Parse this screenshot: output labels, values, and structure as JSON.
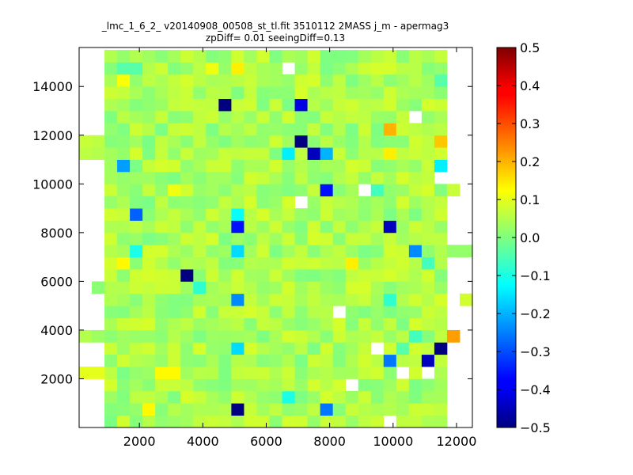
{
  "chart_data": {
    "type": "heatmap",
    "title_lines": [
      "_lmc_1_6_2_ v20140908_00508_st_tl.fit 3510112 2MASS j_m - apermag3",
      "zpDiff= 0.01 seeingDiff=0.13"
    ],
    "xlabel": "",
    "ylabel": "",
    "xlim": [
      100,
      12500
    ],
    "ylim": [
      0,
      15600
    ],
    "x_ticks": [
      2000,
      4000,
      6000,
      8000,
      10000,
      12000
    ],
    "x_tick_labels": [
      "2000",
      "4000",
      "6000",
      "8000",
      "10000",
      "12000"
    ],
    "y_ticks": [
      2000,
      4000,
      6000,
      8000,
      10000,
      12000,
      14000
    ],
    "y_tick_labels": [
      "2000",
      "4000",
      "6000",
      "8000",
      "10000",
      "12000",
      "14000"
    ],
    "colormap": "jet",
    "colorbar": {
      "vmin": -0.5,
      "vmax": 0.5,
      "ticks": [
        -0.5,
        -0.4,
        -0.3,
        -0.2,
        -0.1,
        0.0,
        0.1,
        0.2,
        0.3,
        0.4,
        0.5
      ],
      "tick_labels": [
        "−0.5",
        "−0.4",
        "−0.3",
        "−0.2",
        "−0.1",
        "0.0",
        "0.1",
        "0.2",
        "0.3",
        "0.4",
        "0.5"
      ]
    },
    "grid": false,
    "cell_size": [
      400,
      500
    ],
    "base_columns": {
      "x_start": 900,
      "count": 27,
      "y_start": 0,
      "rows": 31,
      "typical_value": 0.04
    },
    "cells": [
      {
        "x": 100,
        "y": 11000,
        "v": 0.06
      },
      {
        "x": 500,
        "y": 11000,
        "v": 0.05
      },
      {
        "x": 100,
        "y": 11500,
        "v": 0.07
      },
      {
        "x": 500,
        "y": 11500,
        "v": 0.06
      },
      {
        "x": 500,
        "y": 5500,
        "v": 0.01
      },
      {
        "x": 100,
        "y": 3500,
        "v": 0.05
      },
      {
        "x": 500,
        "y": 3500,
        "v": 0.03
      },
      {
        "x": 100,
        "y": 2000,
        "v": 0.1
      },
      {
        "x": 500,
        "y": 2000,
        "v": 0.1
      },
      {
        "x": 11700,
        "y": 9500,
        "v": 0.07
      },
      {
        "x": 11700,
        "y": 7000,
        "v": 0.02
      },
      {
        "x": 12100,
        "y": 7000,
        "v": 0.02
      },
      {
        "x": 12100,
        "y": 5000,
        "v": 0.08
      },
      {
        "x": 11700,
        "y": 3500,
        "v": 0.22
      },
      {
        "x": 4500,
        "y": 13000,
        "v": -0.5
      },
      {
        "x": 6900,
        "y": 13000,
        "v": -0.4
      },
      {
        "x": 6900,
        "y": 11500,
        "v": -0.5
      },
      {
        "x": 6500,
        "y": 11000,
        "v": -0.14
      },
      {
        "x": 7300,
        "y": 11000,
        "v": -0.44
      },
      {
        "x": 7700,
        "y": 11000,
        "v": -0.2
      },
      {
        "x": 7700,
        "y": 9500,
        "v": -0.36
      },
      {
        "x": 1300,
        "y": 10500,
        "v": -0.22
      },
      {
        "x": 1700,
        "y": 8500,
        "v": -0.28
      },
      {
        "x": 4900,
        "y": 8000,
        "v": -0.36
      },
      {
        "x": 4900,
        "y": 8500,
        "v": -0.12
      },
      {
        "x": 4900,
        "y": 7000,
        "v": -0.16
      },
      {
        "x": 1700,
        "y": 7000,
        "v": -0.1
      },
      {
        "x": 3300,
        "y": 6000,
        "v": -0.5
      },
      {
        "x": 3700,
        "y": 5500,
        "v": -0.08
      },
      {
        "x": 4900,
        "y": 5000,
        "v": -0.24
      },
      {
        "x": 9700,
        "y": 8000,
        "v": -0.44
      },
      {
        "x": 10500,
        "y": 7000,
        "v": -0.24
      },
      {
        "x": 10900,
        "y": 6500,
        "v": -0.06
      },
      {
        "x": 9300,
        "y": 9500,
        "v": -0.06
      },
      {
        "x": 9700,
        "y": 5000,
        "v": -0.08
      },
      {
        "x": 4900,
        "y": 3000,
        "v": -0.16
      },
      {
        "x": 6500,
        "y": 1000,
        "v": -0.1
      },
      {
        "x": 4900,
        "y": 500,
        "v": -0.5
      },
      {
        "x": 7700,
        "y": 500,
        "v": -0.26
      },
      {
        "x": 9700,
        "y": 2500,
        "v": -0.26
      },
      {
        "x": 10100,
        "y": 3000,
        "v": -0.04
      },
      {
        "x": 11300,
        "y": 3000,
        "v": -0.5
      },
      {
        "x": 10900,
        "y": 2500,
        "v": -0.44
      },
      {
        "x": 10500,
        "y": 3500,
        "v": -0.06
      },
      {
        "x": 11300,
        "y": 10500,
        "v": -0.14
      },
      {
        "x": 11300,
        "y": 14000,
        "v": -0.04
      },
      {
        "x": 1300,
        "y": 14500,
        "v": -0.04
      },
      {
        "x": 1700,
        "y": 14500,
        "v": -0.04
      },
      {
        "x": 3300,
        "y": 14500,
        "v": 0.02
      },
      {
        "x": 6100,
        "y": 15000,
        "v": 0.0
      },
      {
        "x": 9700,
        "y": 12000,
        "v": 0.2
      },
      {
        "x": 11300,
        "y": 11500,
        "v": 0.18
      },
      {
        "x": 9700,
        "y": 11000,
        "v": 0.14
      },
      {
        "x": 8500,
        "y": 6500,
        "v": 0.14
      },
      {
        "x": 1300,
        "y": 6500,
        "v": 0.13
      },
      {
        "x": 2500,
        "y": 2000,
        "v": 0.13
      },
      {
        "x": 2900,
        "y": 2000,
        "v": 0.13
      },
      {
        "x": 2100,
        "y": 500,
        "v": 0.13
      },
      {
        "x": 4900,
        "y": 14500,
        "v": 0.14
      },
      {
        "x": 4100,
        "y": 14500,
        "v": 0.11
      },
      {
        "x": 1300,
        "y": 14000,
        "v": 0.12
      },
      {
        "x": 2900,
        "y": 9500,
        "v": 0.11
      },
      {
        "x": 6500,
        "y": 14500,
        "v": null
      },
      {
        "x": 10500,
        "y": 12500,
        "v": null
      },
      {
        "x": 11300,
        "y": 10000,
        "v": null
      },
      {
        "x": 8900,
        "y": 9500,
        "v": null
      },
      {
        "x": 6900,
        "y": 9000,
        "v": null
      },
      {
        "x": 8100,
        "y": 4500,
        "v": null
      },
      {
        "x": 9300,
        "y": 3000,
        "v": null
      },
      {
        "x": 10100,
        "y": 2000,
        "v": null
      },
      {
        "x": 10900,
        "y": 2000,
        "v": null
      },
      {
        "x": 8500,
        "y": 1500,
        "v": null
      },
      {
        "x": 9700,
        "y": 0,
        "v": null
      }
    ]
  }
}
